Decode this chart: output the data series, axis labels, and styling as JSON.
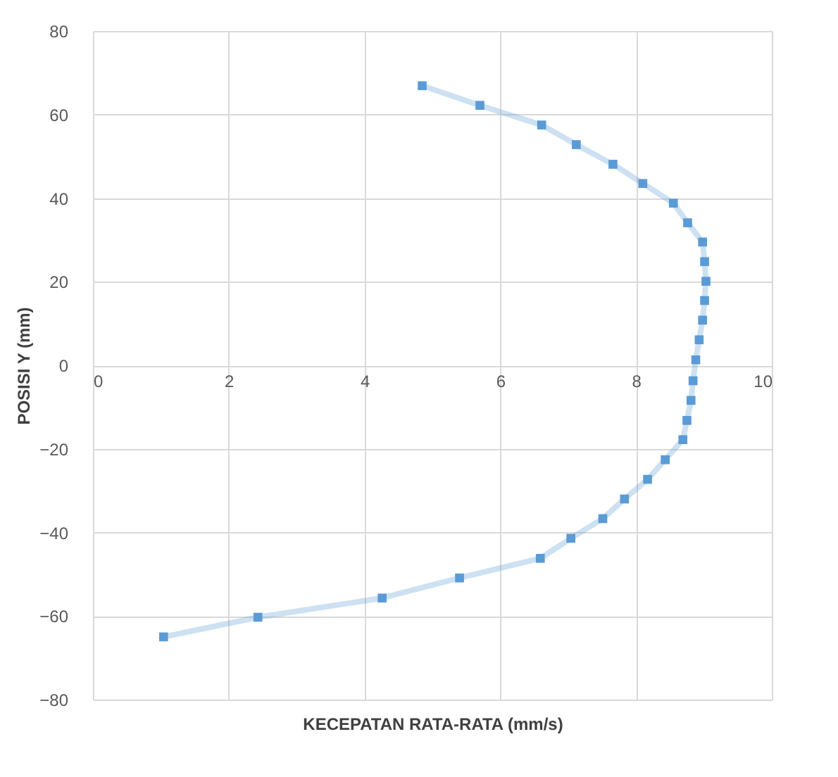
{
  "chart_data": {
    "type": "line",
    "xlabel": "KECEPATAN RATA-RATA (mm/s)",
    "ylabel": "POSISI Y  (mm)",
    "series": [
      {
        "color": "#5b9bd5",
        "x": [
          4.85,
          5.7,
          6.61,
          7.12,
          7.66,
          8.1,
          8.55,
          8.76,
          8.98,
          9.01,
          9.03,
          9.01,
          8.98,
          8.93,
          8.88,
          8.84,
          8.81,
          8.75,
          8.69,
          8.43,
          8.17,
          7.83,
          7.51,
          7.04,
          6.59,
          5.4,
          4.26,
          2.43,
          1.04
        ],
        "values": [
          66.9,
          62.2,
          57.5,
          52.8,
          48.1,
          43.5,
          38.8,
          34.1,
          29.5,
          24.8,
          20.1,
          15.5,
          10.8,
          6.1,
          1.3,
          -3.7,
          -8.4,
          -13.2,
          -17.8,
          -22.6,
          -27.3,
          -32.0,
          -36.7,
          -41.4,
          -46.2,
          -50.9,
          -55.7,
          -60.3,
          -65.0
        ]
      }
    ],
    "xlim": [
      0,
      10
    ],
    "xticks": [
      0,
      2,
      4,
      6,
      8,
      10
    ],
    "ylim": [
      -80,
      80
    ],
    "yticks": [
      -80,
      -60,
      -40,
      -20,
      0,
      20,
      40,
      60,
      80
    ],
    "grid": true,
    "marker": "square",
    "line_style": "solid"
  }
}
